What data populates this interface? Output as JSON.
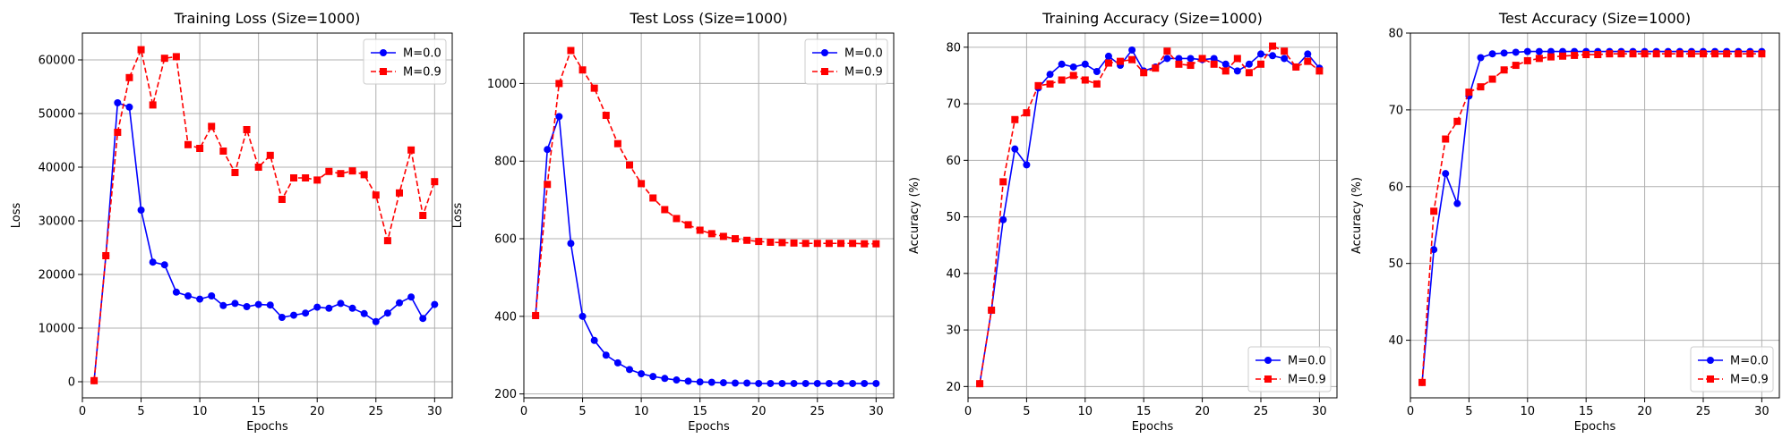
{
  "chart_data": [
    {
      "type": "line",
      "title": "Training Loss (Size=1000)",
      "xlabel": "Epochs",
      "ylabel": "Loss",
      "xlim": [
        0,
        31.5
      ],
      "ylim": [
        -3000,
        65000
      ],
      "xticks": [
        0,
        5,
        10,
        15,
        20,
        25,
        30
      ],
      "yticks": [
        0,
        10000,
        20000,
        30000,
        40000,
        50000,
        60000
      ],
      "grid": true,
      "legend": "top-right",
      "x": [
        1,
        2,
        3,
        4,
        5,
        6,
        7,
        8,
        9,
        10,
        11,
        12,
        13,
        14,
        15,
        16,
        17,
        18,
        19,
        20,
        21,
        22,
        23,
        24,
        25,
        26,
        27,
        28,
        29,
        30
      ],
      "series": [
        {
          "name": "M=0.0",
          "color": "#0000ff",
          "style": "solid",
          "marker": "circle",
          "values": [
            200,
            23500,
            52000,
            51200,
            32000,
            22300,
            21800,
            16700,
            16000,
            15400,
            16000,
            14200,
            14600,
            14000,
            14400,
            14300,
            12000,
            12400,
            12800,
            13900,
            13700,
            14600,
            13700,
            12700,
            11200,
            12800,
            14700,
            15800,
            11800,
            14400
          ]
        },
        {
          "name": "M=0.9",
          "color": "#ff0000",
          "style": "dashed",
          "marker": "square",
          "values": [
            200,
            23500,
            46500,
            56700,
            61900,
            51600,
            60300,
            60600,
            44200,
            43500,
            47600,
            43000,
            39000,
            47000,
            40000,
            42200,
            34000,
            38000,
            38000,
            37600,
            39200,
            38800,
            39300,
            38600,
            34800,
            26300,
            35200,
            43200,
            31000,
            37300
          ]
        }
      ]
    },
    {
      "type": "line",
      "title": "Test Loss (Size=1000)",
      "xlabel": "Epochs",
      "ylabel": "Loss",
      "xlim": [
        0,
        31.5
      ],
      "ylim": [
        190,
        1130
      ],
      "xticks": [
        0,
        5,
        10,
        15,
        20,
        25,
        30
      ],
      "yticks": [
        200,
        400,
        600,
        800,
        1000
      ],
      "grid": true,
      "legend": "top-right",
      "x": [
        1,
        2,
        3,
        4,
        5,
        6,
        7,
        8,
        9,
        10,
        11,
        12,
        13,
        14,
        15,
        16,
        17,
        18,
        19,
        20,
        21,
        22,
        23,
        24,
        25,
        26,
        27,
        28,
        29,
        30
      ],
      "series": [
        {
          "name": "M=0.0",
          "color": "#0000ff",
          "style": "solid",
          "marker": "circle",
          "values": [
            402,
            830,
            915,
            588,
            400,
            338,
            300,
            280,
            263,
            252,
            245,
            240,
            236,
            233,
            231,
            230,
            229,
            228,
            228,
            227,
            227,
            227,
            227,
            227,
            227,
            227,
            227,
            227,
            227,
            227
          ]
        },
        {
          "name": "M=0.9",
          "color": "#ff0000",
          "style": "dashed",
          "marker": "square",
          "values": [
            402,
            740,
            1000,
            1085,
            1035,
            988,
            918,
            845,
            790,
            742,
            705,
            675,
            652,
            636,
            622,
            613,
            606,
            600,
            596,
            593,
            591,
            590,
            589,
            588,
            588,
            588,
            588,
            588,
            587,
            587
          ]
        }
      ]
    },
    {
      "type": "line",
      "title": "Training Accuracy (Size=1000)",
      "xlabel": "Epochs",
      "ylabel": "Accuracy (%)",
      "xlim": [
        0,
        31.5
      ],
      "ylim": [
        18,
        82.5
      ],
      "xticks": [
        0,
        5,
        10,
        15,
        20,
        25,
        30
      ],
      "yticks": [
        20,
        30,
        40,
        50,
        60,
        70,
        80
      ],
      "grid": true,
      "legend": "bottom-right",
      "x": [
        1,
        2,
        3,
        4,
        5,
        6,
        7,
        8,
        9,
        10,
        11,
        12,
        13,
        14,
        15,
        16,
        17,
        18,
        19,
        20,
        21,
        22,
        23,
        24,
        25,
        26,
        27,
        28,
        29,
        30
      ],
      "series": [
        {
          "name": "M=0.0",
          "color": "#0000ff",
          "style": "solid",
          "marker": "circle",
          "values": [
            20.5,
            33.5,
            49.5,
            62.0,
            59.2,
            72.8,
            75.2,
            77.0,
            76.5,
            77.0,
            75.7,
            78.4,
            76.8,
            79.5,
            75.8,
            76.5,
            78.0,
            78.0,
            78.0,
            77.8,
            78.0,
            77.0,
            75.8,
            77.0,
            78.8,
            78.5,
            78.0,
            76.5,
            78.8,
            76.3
          ]
        },
        {
          "name": "M=0.9",
          "color": "#ff0000",
          "style": "dashed",
          "marker": "square",
          "values": [
            20.5,
            33.5,
            56.2,
            67.2,
            68.4,
            73.2,
            73.5,
            74.2,
            75.0,
            74.2,
            73.5,
            77.2,
            77.5,
            77.8,
            75.5,
            76.3,
            79.3,
            77.0,
            76.8,
            78.0,
            77.0,
            75.8,
            78.0,
            75.5,
            77.0,
            80.2,
            79.3,
            76.5,
            77.5,
            75.8
          ]
        }
      ]
    },
    {
      "type": "line",
      "title": "Test Accuracy (Size=1000)",
      "xlabel": "Epochs",
      "ylabel": "Accuracy (%)",
      "xlim": [
        0,
        31.5
      ],
      "ylim": [
        32.5,
        80
      ],
      "xticks": [
        0,
        5,
        10,
        15,
        20,
        25,
        30
      ],
      "yticks": [
        40,
        50,
        60,
        70,
        80
      ],
      "grid": true,
      "legend": "bottom-right",
      "x": [
        1,
        2,
        3,
        4,
        5,
        6,
        7,
        8,
        9,
        10,
        11,
        12,
        13,
        14,
        15,
        16,
        17,
        18,
        19,
        20,
        21,
        22,
        23,
        24,
        25,
        26,
        27,
        28,
        29,
        30
      ],
      "series": [
        {
          "name": "M=0.0",
          "color": "#0000ff",
          "style": "solid",
          "marker": "circle",
          "values": [
            34.5,
            51.8,
            61.7,
            57.8,
            71.8,
            76.8,
            77.3,
            77.4,
            77.5,
            77.6,
            77.6,
            77.6,
            77.6,
            77.6,
            77.6,
            77.6,
            77.6,
            77.6,
            77.6,
            77.6,
            77.6,
            77.6,
            77.6,
            77.6,
            77.6,
            77.6,
            77.6,
            77.6,
            77.6,
            77.6
          ]
        },
        {
          "name": "M=0.9",
          "color": "#ff0000",
          "style": "dashed",
          "marker": "square",
          "values": [
            34.5,
            56.8,
            66.2,
            68.5,
            72.3,
            73.0,
            74.0,
            75.2,
            75.8,
            76.4,
            76.7,
            76.9,
            77.0,
            77.1,
            77.2,
            77.2,
            77.3,
            77.3,
            77.3,
            77.3,
            77.3,
            77.3,
            77.3,
            77.3,
            77.3,
            77.3,
            77.3,
            77.3,
            77.3,
            77.3
          ]
        }
      ]
    }
  ]
}
